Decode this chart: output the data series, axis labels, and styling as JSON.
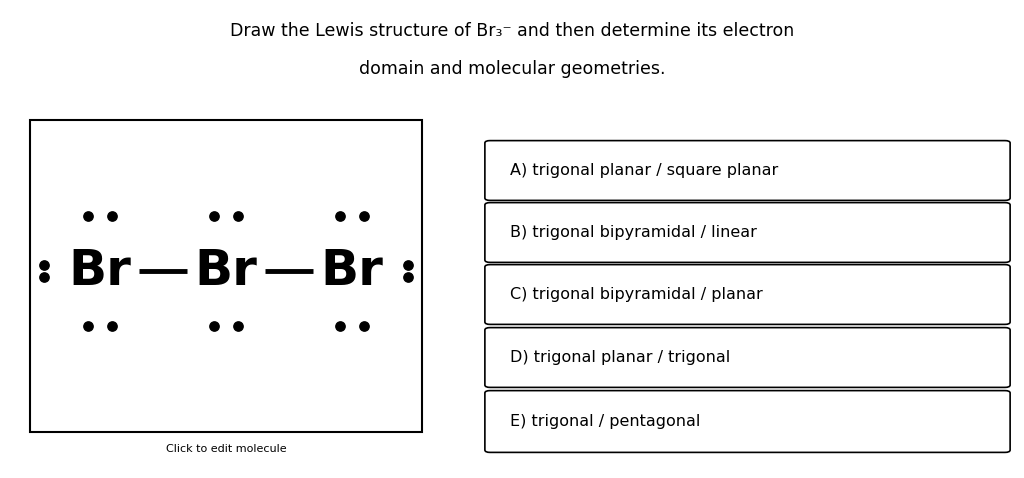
{
  "title_line1": "Draw the Lewis structure of Br₃⁻ and then determine its electron",
  "title_line2": "domain and molecular geometries.",
  "caption": "Click to edit molecule",
  "options": [
    "A) trigonal planar / square planar",
    "B) trigonal bipyramidal / linear",
    "C) trigonal bipyramidal / planar",
    "D) trigonal planar / trigonal",
    "E) trigonal / pentagonal"
  ],
  "background_color": "#ffffff",
  "box_color": "#000000",
  "text_color": "#000000",
  "dot_color": "#000000",
  "fig_width": 10.24,
  "fig_height": 4.78,
  "dpi": 100
}
